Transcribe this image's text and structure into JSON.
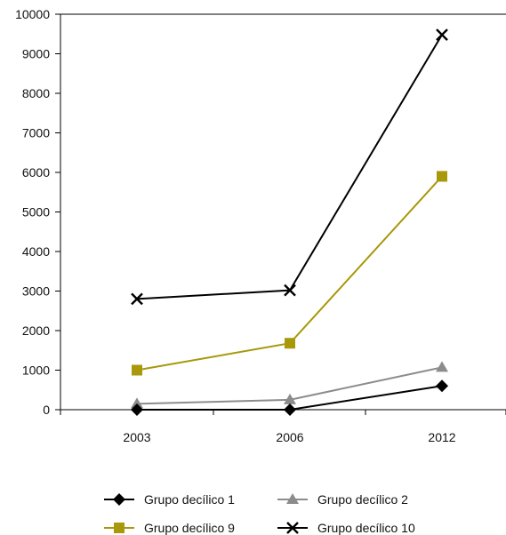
{
  "chart_data": {
    "type": "line",
    "categories": [
      "2003",
      "2006",
      "2012"
    ],
    "ylim": [
      0,
      10000
    ],
    "yticks": [
      0,
      1000,
      2000,
      3000,
      4000,
      5000,
      6000,
      7000,
      8000,
      9000,
      10000
    ],
    "grid": false,
    "legend_position": "bottom",
    "series": [
      {
        "name": "Grupo decílico 1",
        "values": [
          0,
          0,
          600
        ],
        "color": "#000000",
        "marker": "diamond"
      },
      {
        "name": "Grupo decílico 2",
        "values": [
          150,
          250,
          1070
        ],
        "color": "#8c8c8c",
        "marker": "triangle"
      },
      {
        "name": "Grupo decílico 9",
        "values": [
          1000,
          1680,
          5900
        ],
        "color": "#a8980a",
        "marker": "square"
      },
      {
        "name": "Grupo decílico 10",
        "values": [
          2800,
          3020,
          9480
        ],
        "color": "#000000",
        "marker": "x"
      }
    ]
  }
}
